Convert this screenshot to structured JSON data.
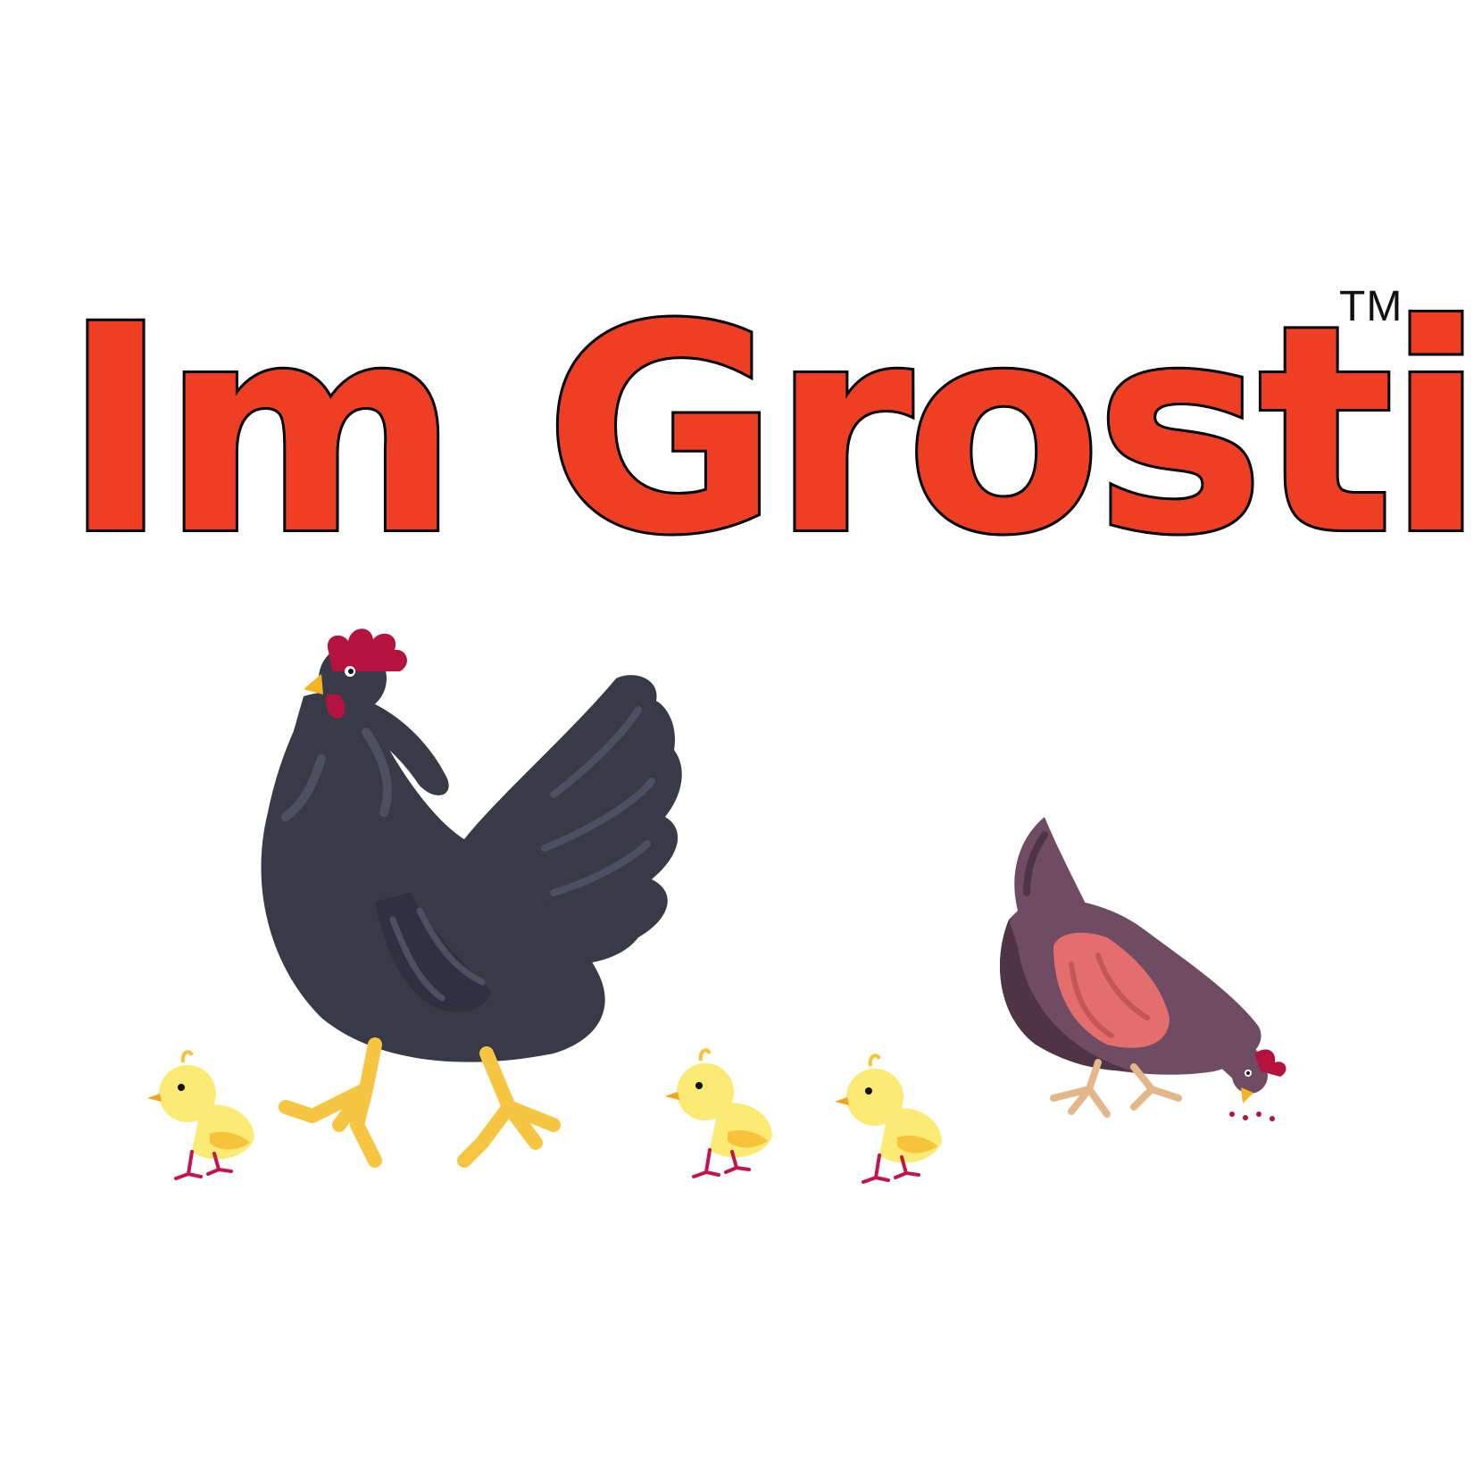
{
  "brand": {
    "name": "Im Grosti",
    "trademark": "TM"
  },
  "colors": {
    "brand_red": "#ee3e24",
    "black_hen": "#383a48",
    "black_hen_highlight": "#4d5061",
    "purple_hen": "#6f4c64",
    "purple_hen_dark": "#4e3444",
    "purple_hen_wing": "#e46e6e",
    "comb_red": "#b5133f",
    "beak_yellow": "#f4b321",
    "feet_yellow": "#f6c542",
    "chick_yellow": "#fbea74",
    "chick_wing": "#f6c33a",
    "chick_feet": "#c3154a",
    "hen_feet_tan": "#e2b78a"
  },
  "illustrations": {
    "black_hen": "black-hen-illustration",
    "purple_hen": "purple-hen-illustration",
    "chicks": [
      "chick-icon",
      "chick-icon",
      "chick-icon"
    ]
  }
}
